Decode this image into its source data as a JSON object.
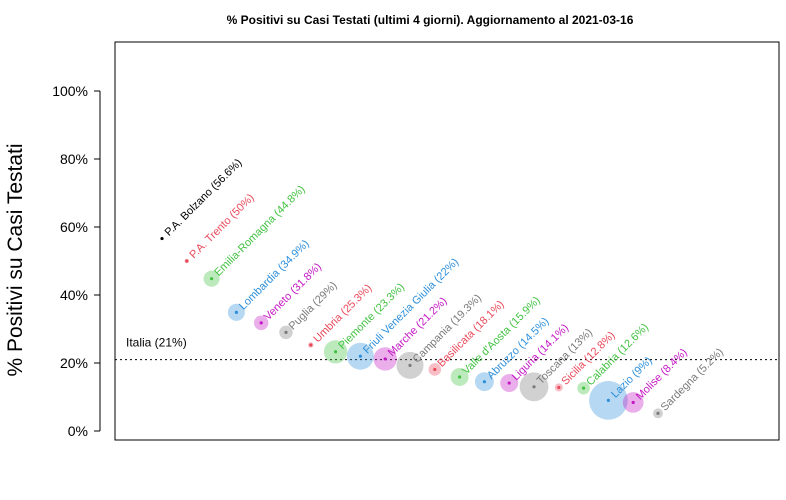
{
  "chart_data": {
    "type": "scatter",
    "title": "% Positivi su Casi Testati (ultimi 4 giorni). Aggiornamento al  2021-03-16",
    "ylabel": "% Positivi su Casi Testati",
    "xlabel": "",
    "ylim": [
      0,
      115
    ],
    "yticks": [
      0,
      20,
      40,
      60,
      80,
      100
    ],
    "ytick_labels": [
      "0%",
      "20%",
      "40%",
      "60%",
      "80%",
      "100%"
    ],
    "grid": false,
    "reference_line": {
      "value": 21,
      "label": "Italia (21%)"
    },
    "colors": {
      "black": "#000000",
      "red": "#e8495a",
      "green": "#42c242",
      "blue": "#2e8fd9",
      "magenta": "#c418c4",
      "gray": "#7a7a7a"
    },
    "points": [
      {
        "rank": 1,
        "label": "P.A. Bolzano (56.6%)",
        "value": 56.6,
        "size": 0.3,
        "color": "black"
      },
      {
        "rank": 2,
        "label": "P.A. Trento (50%)",
        "value": 50,
        "size": 0.5,
        "color": "red"
      },
      {
        "rank": 3,
        "label": "Emilia-Romagna (44.8%)",
        "value": 44.8,
        "size": 1.8,
        "color": "green"
      },
      {
        "rank": 4,
        "label": "Lombardia (34.9%)",
        "value": 34.9,
        "size": 1.9,
        "color": "blue"
      },
      {
        "rank": 5,
        "label": "Veneto (31.8%)",
        "value": 31.8,
        "size": 1.6,
        "color": "magenta"
      },
      {
        "rank": 6,
        "label": "Puglia (29%)",
        "value": 29,
        "size": 1.5,
        "color": "gray"
      },
      {
        "rank": 7,
        "label": "Umbria (25.3%)",
        "value": 25.3,
        "size": 0.6,
        "color": "red"
      },
      {
        "rank": 8,
        "label": "Piemonte (23.3%)",
        "value": 23.3,
        "size": 2.6,
        "color": "green"
      },
      {
        "rank": 9,
        "label": "Friuli Venezia Giulia (22%)",
        "value": 22,
        "size": 3.0,
        "color": "blue"
      },
      {
        "rank": 10,
        "label": "Marche (21.2%)",
        "value": 21.2,
        "size": 2.6,
        "color": "magenta"
      },
      {
        "rank": 11,
        "label": "Campania (19.3%)",
        "value": 19.3,
        "size": 3.0,
        "color": "gray"
      },
      {
        "rank": 12,
        "label": "Basilicata (18.1%)",
        "value": 18.1,
        "size": 1.4,
        "color": "red"
      },
      {
        "rank": 13,
        "label": "Valle d'Aosta (15.9%)",
        "value": 15.9,
        "size": 2.0,
        "color": "green"
      },
      {
        "rank": 14,
        "label": "Abruzzo (14.5%)",
        "value": 14.5,
        "size": 2.1,
        "color": "blue"
      },
      {
        "rank": 15,
        "label": "Liguria (14.1%)",
        "value": 14.1,
        "size": 2.0,
        "color": "magenta"
      },
      {
        "rank": 16,
        "label": "Toscana (13%)",
        "value": 13,
        "size": 3.2,
        "color": "gray"
      },
      {
        "rank": 17,
        "label": "Sicilia (12.8%)",
        "value": 12.8,
        "size": 0.9,
        "color": "red"
      },
      {
        "rank": 18,
        "label": "Calabria (12.6%)",
        "value": 12.6,
        "size": 1.4,
        "color": "green"
      },
      {
        "rank": 19,
        "label": "Lazio (9%)",
        "value": 9,
        "size": 4.3,
        "color": "blue"
      },
      {
        "rank": 20,
        "label": "Molise (8.4%)",
        "value": 8.4,
        "size": 2.3,
        "color": "magenta"
      },
      {
        "rank": 21,
        "label": "Sardegna (5.2%)",
        "value": 5.2,
        "size": 1.1,
        "color": "gray"
      }
    ]
  }
}
